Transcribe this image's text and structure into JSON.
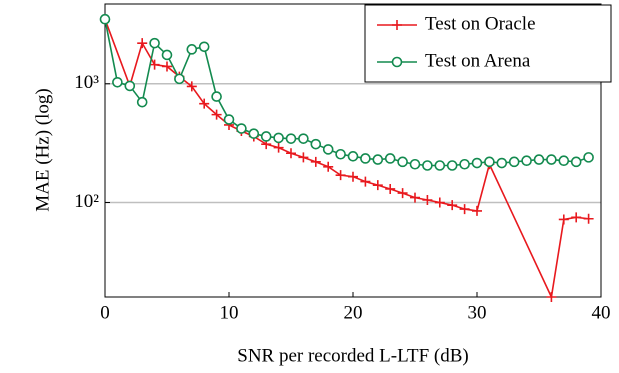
{
  "chart_data": {
    "type": "line",
    "log_y": true,
    "grid": true,
    "legend": "upper right",
    "xlabel": "SNR per recorded L-LTF (dB)",
    "ylabel": "MAE (Hz) (log)",
    "xlim": [
      0,
      40
    ],
    "xticks": [
      0,
      10,
      20,
      30,
      40
    ],
    "ylim": [
      16,
      4700
    ],
    "yticks": [
      {
        "value": 100,
        "label": "10²"
      },
      {
        "value": 1000,
        "label": "10³"
      }
    ],
    "series": [
      {
        "name": "Test on Oracle",
        "color": "#e8191e",
        "marker": "plus",
        "x": [
          0,
          2,
          3,
          4,
          5,
          6,
          7,
          8,
          9,
          10,
          11,
          12,
          13,
          14,
          15,
          16,
          17,
          18,
          19,
          20,
          21,
          22,
          23,
          24,
          25,
          26,
          27,
          28,
          29,
          30,
          31,
          36,
          37,
          38,
          39
        ],
        "values": [
          3500,
          960,
          2200,
          1450,
          1400,
          1150,
          950,
          680,
          550,
          450,
          400,
          360,
          310,
          290,
          260,
          240,
          220,
          200,
          170,
          165,
          150,
          140,
          130,
          120,
          110,
          105,
          100,
          95,
          88,
          85,
          210,
          16,
          72,
          75,
          73
        ]
      },
      {
        "name": "Test on Arena",
        "color": "#138a4f",
        "marker": "circle",
        "x": [
          0,
          1,
          2,
          3,
          4,
          5,
          6,
          7,
          8,
          9,
          10,
          11,
          12,
          13,
          14,
          15,
          16,
          17,
          18,
          19,
          20,
          21,
          22,
          23,
          24,
          25,
          26,
          27,
          28,
          29,
          30,
          31,
          32,
          33,
          34,
          35,
          36,
          37,
          38,
          39
        ],
        "values": [
          3500,
          1030,
          960,
          700,
          2200,
          1750,
          1100,
          1950,
          2050,
          780,
          500,
          420,
          380,
          360,
          350,
          345,
          345,
          310,
          280,
          255,
          245,
          235,
          230,
          235,
          220,
          210,
          205,
          205,
          205,
          210,
          215,
          220,
          215,
          220,
          225,
          230,
          230,
          225,
          220,
          240
        ]
      }
    ]
  }
}
